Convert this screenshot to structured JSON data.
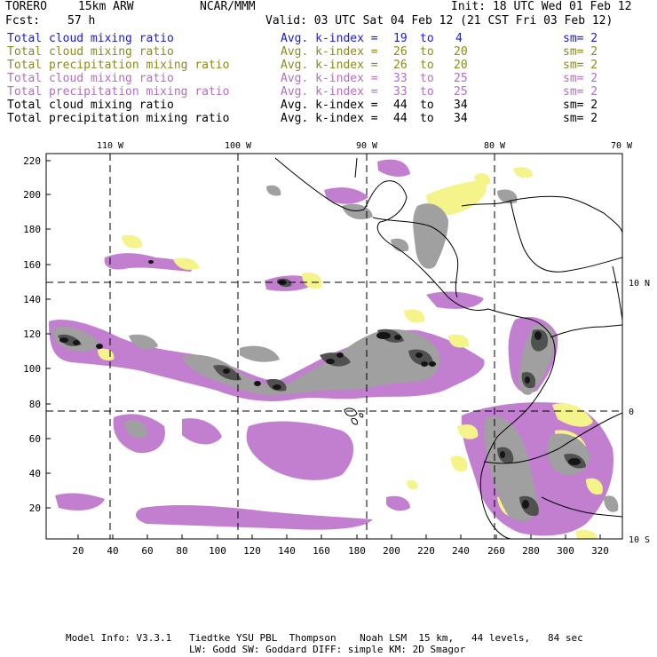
{
  "header": {
    "model": "TORERO",
    "resolution": "15km ARW",
    "org": "NCAR/MMM",
    "init": "Init: 18 UTC Wed 01 Feb 12",
    "fcst_label": "Fcst:",
    "fcst_value": "57 h",
    "valid": "Valid: 03 UTC Sat 04 Feb 12 (21 CST Fri 03 Feb 12)"
  },
  "legend": [
    {
      "field": "Total cloud mixing ratio",
      "kindex": "Avg. k-index =",
      "hi": "19",
      "to": "to",
      "lo": "4",
      "sm": "sm= 2",
      "color": "#1a1ad6"
    },
    {
      "field": "Total cloud mixing ratio",
      "kindex": "Avg. k-index =",
      "hi": "26",
      "to": "to",
      "lo": "20",
      "sm": "sm= 2",
      "color": "#8a8a1e"
    },
    {
      "field": "Total precipitation mixing ratio",
      "kindex": "Avg. k-index =",
      "hi": "26",
      "to": "to",
      "lo": "20",
      "sm": "sm= 2",
      "color": "#8a8a1e"
    },
    {
      "field": "Total cloud mixing ratio",
      "kindex": "Avg. k-index =",
      "hi": "33",
      "to": "to",
      "lo": "25",
      "sm": "sm= 2",
      "color": "#b070c0"
    },
    {
      "field": "Total precipitation mixing ratio",
      "kindex": "Avg. k-index =",
      "hi": "33",
      "to": "to",
      "lo": "25",
      "sm": "sm= 2",
      "color": "#b070c0"
    },
    {
      "field": "Total cloud mixing ratio",
      "kindex": "Avg. k-index =",
      "hi": "44",
      "to": "to",
      "lo": "34",
      "sm": "sm= 2",
      "color": "#000000"
    },
    {
      "field": "Total precipitation mixing ratio",
      "kindex": "Avg. k-index =",
      "hi": "44",
      "to": "to",
      "lo": "34",
      "sm": "sm= 2",
      "color": "#000000"
    }
  ],
  "map": {
    "lon_labels": [
      "110 W",
      "100 W",
      "90 W",
      "80 W",
      "70 W"
    ],
    "lat_labels": [
      "10 N",
      "0",
      "10 S"
    ],
    "y_ticks": [
      "220",
      "200",
      "180",
      "160",
      "140",
      "120",
      "100",
      "80",
      "60",
      "40",
      "20"
    ],
    "x_ticks": [
      "20",
      "40",
      "60",
      "80",
      "100",
      "120",
      "140",
      "160",
      "180",
      "200",
      "220",
      "240",
      "260",
      "280",
      "300",
      "320"
    ],
    "colors": {
      "magenta": "#c27fd0",
      "yellow": "#f4f48a",
      "gray_light": "#a0a0a0",
      "gray_dark": "#505050",
      "gray_black": "#151515"
    }
  },
  "footer": {
    "line1": "Model Info: V3.3.1   Tiedtke YSU PBL  Thompson    Noah LSM  15 km,   44 levels,   84 sec",
    "line2": "LW: Godd SW: Goddard DIFF: simple KM: 2D Smagor"
  }
}
